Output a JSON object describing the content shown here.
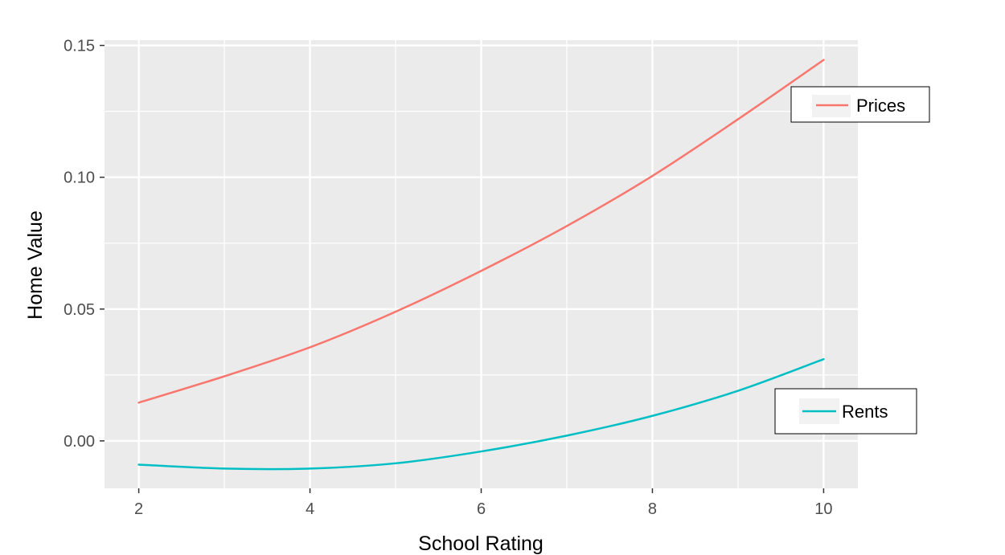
{
  "chart_data": {
    "type": "line",
    "title": "",
    "xlabel": "School Rating",
    "ylabel": "Home Value",
    "xlim": [
      1.6,
      10.4
    ],
    "ylim": [
      -0.018,
      0.152
    ],
    "x_ticks": [
      2,
      4,
      6,
      8,
      10
    ],
    "x_tick_labels": [
      "2",
      "4",
      "6",
      "8",
      "10"
    ],
    "y_ticks": [
      0.0,
      0.05,
      0.1,
      0.15
    ],
    "y_tick_labels": [
      "0.00",
      "0.05",
      "0.10",
      "0.15"
    ],
    "grid": true,
    "series": [
      {
        "name": "Prices",
        "color": "#F8766D",
        "x": [
          2,
          3,
          4,
          5,
          6,
          7,
          8,
          9,
          10
        ],
        "y": [
          0.0145,
          0.0245,
          0.0355,
          0.049,
          0.0645,
          0.0815,
          0.1005,
          0.122,
          0.1445
        ]
      },
      {
        "name": "Rents",
        "color": "#00BFC4",
        "x": [
          2,
          3,
          4,
          5,
          6,
          7,
          8,
          9,
          10
        ],
        "y": [
          -0.009,
          -0.0105,
          -0.0105,
          -0.0085,
          -0.004,
          0.002,
          0.0095,
          0.019,
          0.031
        ]
      }
    ],
    "legend": [
      {
        "label": "Prices",
        "color": "#F8766D",
        "placement": "upper-right"
      },
      {
        "label": "Rents",
        "color": "#00BFC4",
        "placement": "lower-right"
      }
    ]
  }
}
